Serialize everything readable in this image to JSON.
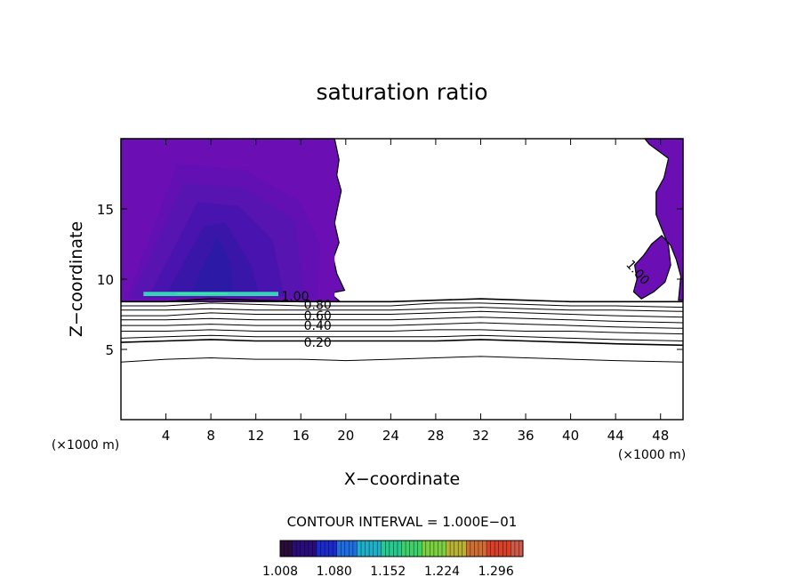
{
  "chart_data": {
    "type": "heatmap",
    "title": "saturation ratio",
    "xlabel": "X−coordinate",
    "ylabel": "Z−coordinate",
    "x_unit": "(×1000 m)",
    "y_unit": "(×1000 m)",
    "xlim": [
      0,
      50
    ],
    "ylim": [
      0,
      20
    ],
    "x_ticks": [
      4,
      8,
      12,
      16,
      20,
      24,
      28,
      32,
      36,
      40,
      44,
      48
    ],
    "y_ticks": [
      5,
      10,
      15
    ],
    "contour_interval_text": "CONTOUR INTERVAL = 1.000E−01",
    "contour_labels": [
      "1.00",
      "0.80",
      "0.60",
      "0.40",
      "0.20",
      "1.00"
    ],
    "contours": [
      {
        "level": 1.0,
        "x": [
          0,
          4,
          8,
          12,
          16,
          20,
          24,
          28,
          32,
          36,
          40,
          44,
          50
        ],
        "z": [
          8.4,
          8.4,
          8.6,
          8.5,
          8.4,
          8.4,
          8.4,
          8.5,
          8.6,
          8.5,
          8.4,
          8.4,
          8.4
        ]
      },
      {
        "level": 0.9,
        "x": [
          0,
          4,
          8,
          12,
          16,
          20,
          24,
          28,
          32,
          36,
          40,
          44,
          50
        ],
        "z": [
          8.1,
          8.1,
          8.3,
          8.2,
          8.1,
          8.1,
          8.1,
          8.3,
          8.3,
          8.2,
          8.1,
          8.1,
          8.0
        ]
      },
      {
        "level": 0.8,
        "x": [
          0,
          4,
          8,
          12,
          16,
          20,
          24,
          28,
          32,
          36,
          40,
          44,
          50
        ],
        "z": [
          7.8,
          7.8,
          7.9,
          7.8,
          7.8,
          7.8,
          7.8,
          7.9,
          8.0,
          7.9,
          7.8,
          7.8,
          7.7
        ]
      },
      {
        "level": 0.7,
        "x": [
          0,
          4,
          8,
          12,
          16,
          20,
          24,
          28,
          32,
          36,
          40,
          44,
          50
        ],
        "z": [
          7.4,
          7.4,
          7.6,
          7.5,
          7.5,
          7.5,
          7.5,
          7.6,
          7.7,
          7.6,
          7.5,
          7.4,
          7.3
        ]
      },
      {
        "level": 0.6,
        "x": [
          0,
          4,
          8,
          12,
          16,
          20,
          24,
          28,
          32,
          36,
          40,
          44,
          50
        ],
        "z": [
          7.1,
          7.1,
          7.2,
          7.1,
          7.1,
          7.1,
          7.1,
          7.2,
          7.3,
          7.2,
          7.1,
          7.0,
          6.9
        ]
      },
      {
        "level": 0.5,
        "x": [
          0,
          4,
          8,
          12,
          16,
          20,
          24,
          28,
          32,
          36,
          40,
          44,
          50
        ],
        "z": [
          6.7,
          6.7,
          6.8,
          6.7,
          6.7,
          6.7,
          6.7,
          6.8,
          6.9,
          6.8,
          6.7,
          6.6,
          6.5
        ]
      },
      {
        "level": 0.4,
        "x": [
          0,
          4,
          8,
          12,
          16,
          20,
          24,
          28,
          32,
          36,
          40,
          44,
          50
        ],
        "z": [
          6.3,
          6.3,
          6.4,
          6.3,
          6.3,
          6.3,
          6.3,
          6.4,
          6.4,
          6.3,
          6.3,
          6.2,
          6.1
        ]
      },
      {
        "level": 0.3,
        "x": [
          0,
          4,
          8,
          12,
          16,
          20,
          24,
          28,
          32,
          36,
          40,
          44,
          50
        ],
        "z": [
          5.8,
          5.9,
          6.0,
          5.9,
          5.9,
          5.9,
          5.9,
          5.9,
          6.0,
          5.9,
          5.8,
          5.7,
          5.6
        ]
      },
      {
        "level": 0.2,
        "x": [
          0,
          4,
          8,
          12,
          16,
          20,
          24,
          28,
          32,
          36,
          40,
          44,
          50
        ],
        "z": [
          5.5,
          5.6,
          5.7,
          5.6,
          5.6,
          5.6,
          5.6,
          5.6,
          5.7,
          5.6,
          5.5,
          5.4,
          5.3
        ]
      },
      {
        "level": 0.1,
        "x": [
          0,
          4,
          8,
          12,
          16,
          20,
          24,
          28,
          32,
          36,
          40,
          44,
          50
        ],
        "z": [
          4.1,
          4.3,
          4.4,
          4.3,
          4.3,
          4.2,
          4.3,
          4.4,
          4.5,
          4.4,
          4.3,
          4.2,
          4.1
        ]
      }
    ],
    "contour_label_positions": [
      {
        "text_index": 0,
        "x": 15.5,
        "z": 8.8
      },
      {
        "text_index": 1,
        "x": 17.5,
        "z": 8.2
      },
      {
        "text_index": 2,
        "x": 17.5,
        "z": 7.4
      },
      {
        "text_index": 3,
        "x": 17.5,
        "z": 6.7
      },
      {
        "text_index": 4,
        "x": 17.5,
        "z": 5.5
      },
      {
        "text_index": 5,
        "x": 45.7,
        "z": 10.6
      }
    ],
    "supersaturated_regions": [
      {
        "x": [
          0,
          19,
          19.4,
          19.2,
          19.6,
          19.3,
          19.0,
          19.4,
          18.9,
          19.2,
          19.9,
          18.6,
          19.2,
          19.5,
          0
        ],
        "z": [
          20,
          20,
          18.5,
          17.4,
          16.3,
          15.2,
          14.0,
          12.6,
          11.5,
          10.4,
          9.2,
          9.0,
          8.6,
          8.4,
          8.4
        ]
      },
      {
        "x": [
          47,
          50,
          50,
          49.6,
          49.8,
          49.4,
          48.9,
          48.1,
          47.2,
          46.5,
          45.7,
          45.9,
          45.6,
          46.3,
          47.4,
          48.4,
          48.9,
          48.7,
          48.2,
          47.6,
          47.6,
          48.3,
          48.7,
          47.0,
          46.6
        ],
        "z": [
          20,
          20,
          8.5,
          8.5,
          10.2,
          11.4,
          12.4,
          13.1,
          12.5,
          11.7,
          11.0,
          10.0,
          9.1,
          8.6,
          9.1,
          9.8,
          11.0,
          12.4,
          13.4,
          14.6,
          16.2,
          17.2,
          18.6,
          19.6,
          20
        ]
      }
    ],
    "fill_levels": [
      {
        "value": 1.008,
        "color": "#6b0fb5",
        "x": [
          0.3,
          19,
          19,
          0.3
        ],
        "z": [
          19.7,
          19.7,
          8.5,
          8.5
        ]
      },
      {
        "value": 1.02,
        "color": "#6210b3",
        "x": [
          0.5,
          5,
          11,
          16,
          17.7,
          17.5,
          0.5
        ],
        "z": [
          8.6,
          18.2,
          17.8,
          15.5,
          12.5,
          8.6,
          8.6
        ]
      },
      {
        "value": 1.04,
        "color": "#5714b0",
        "x": [
          1,
          5.5,
          11,
          15.5,
          16.3,
          1
        ],
        "z": [
          8.7,
          16.8,
          16.5,
          14.2,
          8.7,
          8.7
        ]
      },
      {
        "value": 1.06,
        "color": "#4813ae",
        "x": [
          2.5,
          6.8,
          10.5,
          13.5,
          14.5,
          2.5
        ],
        "z": [
          8.8,
          15.5,
          15.2,
          12.8,
          8.8,
          8.8
        ]
      },
      {
        "value": 1.08,
        "color": "#3a16a8",
        "x": [
          4,
          7.4,
          9.3,
          11.6,
          12.3,
          4
        ],
        "z": [
          8.9,
          13.8,
          14.0,
          11.0,
          8.9,
          8.9
        ]
      },
      {
        "value": 1.1,
        "color": "#2c1aa6",
        "x": [
          6.2,
          7.6,
          8.6,
          9.7,
          10.1,
          6.2
        ],
        "z": [
          8.9,
          11.5,
          13.0,
          11.3,
          8.9,
          8.9
        ]
      },
      {
        "value": 1.152,
        "color": "#35d2b5",
        "x": [
          2,
          14,
          14,
          2
        ],
        "z": [
          9.1,
          9.1,
          8.8,
          8.8
        ]
      },
      {
        "value": 1.224,
        "color": "#3cff8c",
        "x": [
          5,
          9.5,
          9.5,
          5
        ],
        "z": [
          9.0,
          9.0,
          8.95,
          8.95
        ]
      }
    ],
    "colorbar": {
      "tick_labels": [
        "1.008",
        "1.080",
        "1.152",
        "1.224",
        "1.296"
      ],
      "range": [
        1.008,
        1.332
      ],
      "colors": [
        "#2b0b3a",
        "#2a0d7a",
        "#1a2acb",
        "#1f6ee0",
        "#1fb0c9",
        "#26c98f",
        "#3fd06a",
        "#7bd040",
        "#b7b233",
        "#cf6e33",
        "#d8402a",
        "#d05a47"
      ]
    }
  }
}
